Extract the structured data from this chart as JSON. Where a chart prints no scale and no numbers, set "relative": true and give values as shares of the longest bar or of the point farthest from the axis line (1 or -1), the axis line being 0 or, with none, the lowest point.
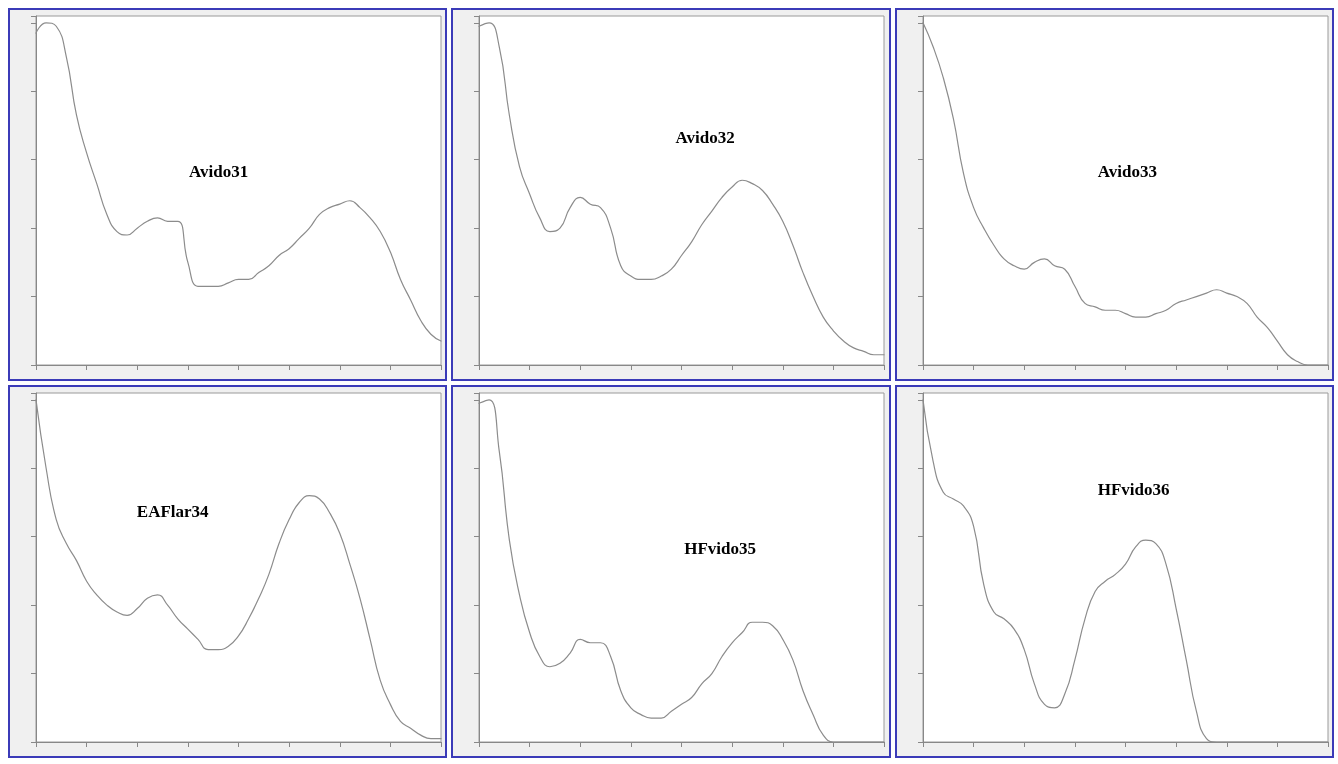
{
  "chart_data": [
    {
      "type": "line",
      "title": "Avido31",
      "relative": true,
      "color": "#8c8c8c",
      "marker": "none",
      "grid": false,
      "categories": [
        null,
        null,
        null,
        null,
        null,
        null,
        null,
        null,
        null,
        null,
        null,
        null,
        null,
        null,
        null,
        null,
        null,
        null,
        null,
        null,
        null,
        null,
        null,
        null,
        null,
        null,
        null,
        null,
        null,
        null,
        null,
        null,
        null,
        null,
        null,
        null,
        null,
        null,
        null,
        null,
        null
      ],
      "values": [
        0.97,
        1.0,
        0.99,
        0.9,
        0.73,
        0.62,
        0.53,
        0.44,
        0.39,
        0.38,
        0.4,
        0.42,
        0.43,
        0.42,
        0.42,
        0.3,
        0.23,
        0.23,
        0.23,
        0.24,
        0.25,
        0.25,
        0.27,
        0.29,
        0.32,
        0.34,
        0.37,
        0.4,
        0.44,
        0.46,
        0.47,
        0.48,
        0.46,
        0.43,
        0.39,
        0.33,
        0.25,
        0.19,
        0.13,
        0.09,
        0.07
      ]
    },
    {
      "type": "line",
      "title": "Avido32",
      "relative": true,
      "color": "#8c8c8c",
      "marker": "none",
      "grid": false,
      "categories": [
        null,
        null,
        null,
        null,
        null,
        null,
        null,
        null,
        null,
        null,
        null,
        null,
        null,
        null,
        null,
        null,
        null,
        null,
        null,
        null,
        null,
        null,
        null,
        null,
        null,
        null,
        null,
        null,
        null,
        null,
        null,
        null,
        null,
        null,
        null,
        null,
        null,
        null,
        null,
        null,
        null
      ],
      "values": [
        0.99,
        1.0,
        0.93,
        0.73,
        0.58,
        0.5,
        0.43,
        0.39,
        0.4,
        0.46,
        0.49,
        0.47,
        0.46,
        0.4,
        0.29,
        0.26,
        0.25,
        0.25,
        0.26,
        0.28,
        0.32,
        0.36,
        0.41,
        0.45,
        0.49,
        0.52,
        0.54,
        0.53,
        0.51,
        0.47,
        0.42,
        0.35,
        0.27,
        0.2,
        0.14,
        0.1,
        0.07,
        0.05,
        0.04,
        0.03,
        0.03
      ]
    },
    {
      "type": "line",
      "title": "Avido33",
      "relative": true,
      "color": "#8c8c8c",
      "marker": "none",
      "grid": false,
      "categories": [
        null,
        null,
        null,
        null,
        null,
        null,
        null,
        null,
        null,
        null,
        null,
        null,
        null,
        null,
        null,
        null,
        null,
        null,
        null,
        null,
        null,
        null,
        null,
        null,
        null,
        null,
        null,
        null,
        null,
        null,
        null,
        null,
        null,
        null,
        null,
        null,
        null,
        null,
        null,
        null,
        null
      ],
      "values": [
        1.0,
        0.93,
        0.84,
        0.72,
        0.56,
        0.46,
        0.4,
        0.35,
        0.31,
        0.29,
        0.28,
        0.3,
        0.31,
        0.29,
        0.28,
        0.23,
        0.18,
        0.17,
        0.16,
        0.16,
        0.15,
        0.14,
        0.14,
        0.15,
        0.16,
        0.18,
        0.19,
        0.2,
        0.21,
        0.22,
        0.21,
        0.2,
        0.18,
        0.14,
        0.11,
        0.07,
        0.03,
        0.01,
        0.0,
        0.0,
        0.0
      ]
    },
    {
      "type": "line",
      "title": "EAFlar34",
      "relative": true,
      "color": "#8c8c8c",
      "marker": "none",
      "grid": false,
      "categories": [
        null,
        null,
        null,
        null,
        null,
        null,
        null,
        null,
        null,
        null,
        null,
        null,
        null,
        null,
        null,
        null,
        null,
        null,
        null,
        null,
        null,
        null,
        null,
        null,
        null,
        null,
        null,
        null,
        null,
        null,
        null,
        null,
        null,
        null,
        null,
        null,
        null,
        null,
        null,
        null,
        null
      ],
      "values": [
        1.0,
        0.8,
        0.65,
        0.58,
        0.53,
        0.47,
        0.43,
        0.4,
        0.38,
        0.37,
        0.39,
        0.42,
        0.43,
        0.4,
        0.36,
        0.33,
        0.3,
        0.27,
        0.27,
        0.28,
        0.31,
        0.36,
        0.42,
        0.49,
        0.58,
        0.65,
        0.7,
        0.72,
        0.71,
        0.67,
        0.61,
        0.52,
        0.42,
        0.3,
        0.18,
        0.11,
        0.06,
        0.04,
        0.02,
        0.01,
        0.01
      ]
    },
    {
      "type": "line",
      "title": "HFvido35",
      "relative": true,
      "color": "#8c8c8c",
      "marker": "none",
      "grid": false,
      "categories": [
        null,
        null,
        null,
        null,
        null,
        null,
        null,
        null,
        null,
        null,
        null,
        null,
        null,
        null,
        null,
        null,
        null,
        null,
        null,
        null,
        null,
        null,
        null,
        null,
        null,
        null,
        null,
        null,
        null,
        null,
        null,
        null,
        null,
        null,
        null,
        null,
        null,
        null,
        null,
        null,
        null
      ],
      "values": [
        0.99,
        1.0,
        0.85,
        0.59,
        0.43,
        0.32,
        0.25,
        0.22,
        0.23,
        0.26,
        0.3,
        0.29,
        0.29,
        0.25,
        0.15,
        0.1,
        0.08,
        0.07,
        0.07,
        0.09,
        0.11,
        0.13,
        0.17,
        0.2,
        0.25,
        0.29,
        0.32,
        0.35,
        0.35,
        0.34,
        0.3,
        0.24,
        0.15,
        0.08,
        0.02,
        0.0,
        0.0,
        0.0,
        0.0,
        0.0,
        0.0
      ]
    },
    {
      "type": "line",
      "title": "HFvido36",
      "relative": true,
      "color": "#8c8c8c",
      "marker": "none",
      "grid": false,
      "categories": [
        null,
        null,
        null,
        null,
        null,
        null,
        null,
        null,
        null,
        null,
        null,
        null,
        null,
        null,
        null,
        null,
        null,
        null,
        null,
        null,
        null,
        null,
        null,
        null,
        null,
        null,
        null,
        null,
        null,
        null,
        null,
        null,
        null,
        null,
        null,
        null,
        null,
        null,
        null,
        null,
        null
      ],
      "values": [
        1.0,
        0.82,
        0.73,
        0.71,
        0.69,
        0.63,
        0.46,
        0.38,
        0.36,
        0.33,
        0.27,
        0.17,
        0.11,
        0.1,
        0.14,
        0.24,
        0.36,
        0.44,
        0.47,
        0.49,
        0.52,
        0.57,
        0.59,
        0.58,
        0.52,
        0.39,
        0.24,
        0.09,
        0.01,
        0.0,
        0.0,
        0.0,
        0.0,
        0.0,
        0.0,
        0.0,
        0.0,
        0.0,
        0.0,
        0.0,
        0.0
      ]
    }
  ]
}
